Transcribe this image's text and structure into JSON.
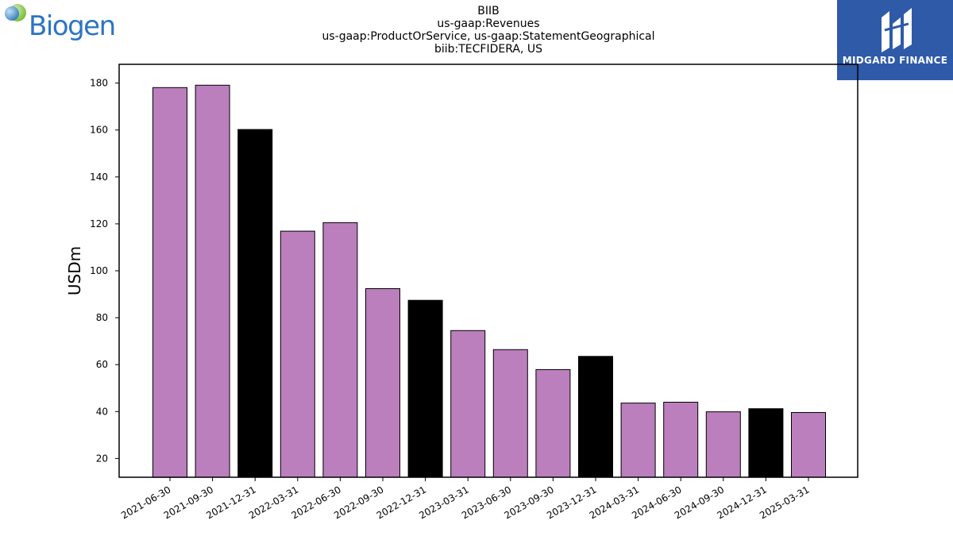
{
  "header": {
    "title_lines": [
      "BIIB",
      "us-gaap:Revenues",
      "us-gaap:ProductOrService, us-gaap:StatementGeographical",
      "biib:TECFIDERA, US"
    ]
  },
  "logos": {
    "left_brand": "Biogen",
    "right_brand": "MIDGARD FINANCE"
  },
  "chart_data": {
    "type": "bar",
    "title": "BIIB\nus-gaap:Revenues\nus-gaap:ProductOrService, us-gaap:StatementGeographical\nbiib:TECFIDERA, US",
    "xlabel": "",
    "ylabel": "USDm",
    "ylim": [
      12,
      188
    ],
    "yticks": [
      20,
      40,
      60,
      80,
      100,
      120,
      140,
      160,
      180
    ],
    "grid": false,
    "categories": [
      "2021-06-30",
      "2021-09-30",
      "2021-12-31",
      "2022-03-31",
      "2022-06-30",
      "2022-09-30",
      "2022-12-31",
      "2023-03-31",
      "2023-06-30",
      "2023-09-30",
      "2023-12-31",
      "2024-03-31",
      "2024-06-30",
      "2024-09-30",
      "2024-12-31",
      "2025-03-31"
    ],
    "values": [
      178.1,
      179.1,
      160.2,
      116.9,
      120.5,
      92.4,
      87.4,
      74.5,
      66.4,
      57.9,
      63.5,
      43.6,
      44.0,
      39.9,
      41.2,
      39.6
    ],
    "bar_colors": [
      "#bb7fbd",
      "#bb7fbd",
      "#000000",
      "#bb7fbd",
      "#bb7fbd",
      "#bb7fbd",
      "#000000",
      "#bb7fbd",
      "#bb7fbd",
      "#bb7fbd",
      "#000000",
      "#bb7fbd",
      "#bb7fbd",
      "#bb7fbd",
      "#000000",
      "#bb7fbd"
    ]
  }
}
